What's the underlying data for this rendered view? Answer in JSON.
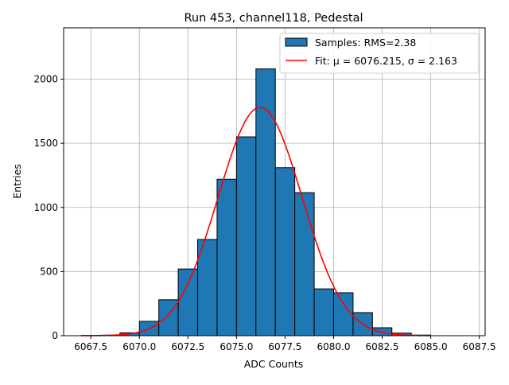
{
  "chart_data": {
    "type": "bar",
    "title": "Run 453, channel118, Pedestal",
    "xlabel": "ADC Counts",
    "ylabel": "Entries",
    "xlim": [
      6066.1,
      6087.8
    ],
    "ylim": [
      0,
      2400
    ],
    "xticks": [
      6067.5,
      6070.0,
      6072.5,
      6075.0,
      6077.5,
      6080.0,
      6082.5,
      6085.0,
      6087.5
    ],
    "xtick_labels": [
      "6067.5",
      "6070.0",
      "6072.5",
      "6075.0",
      "6077.5",
      "6080.0",
      "6082.5",
      "6085.0",
      "6087.5"
    ],
    "yticks": [
      0,
      500,
      1000,
      1500,
      2000
    ],
    "ytick_labels": [
      "0",
      "500",
      "1000",
      "1500",
      "2000"
    ],
    "grid": true,
    "legend_placement": "top-right",
    "bin_edges": [
      6067,
      6068,
      6069,
      6070,
      6071,
      6072,
      6073,
      6074,
      6075,
      6076,
      6077,
      6078,
      6079,
      6080,
      6081,
      6082,
      6083,
      6084,
      6085
    ],
    "values": [
      1,
      4,
      22,
      112,
      280,
      520,
      750,
      1220,
      1550,
      2080,
      1310,
      1115,
      365,
      335,
      180,
      62,
      20,
      5
    ],
    "bar_color": "#1f77b4",
    "fit": {
      "mu": 6076.215,
      "sigma": 2.163,
      "amplitude": 1780,
      "range": [
        6067,
        6085
      ],
      "color": "#ff0000"
    },
    "legend": [
      "Samples: RMS=2.38",
      "Fit: μ = 6076.215, σ = 2.163"
    ]
  }
}
